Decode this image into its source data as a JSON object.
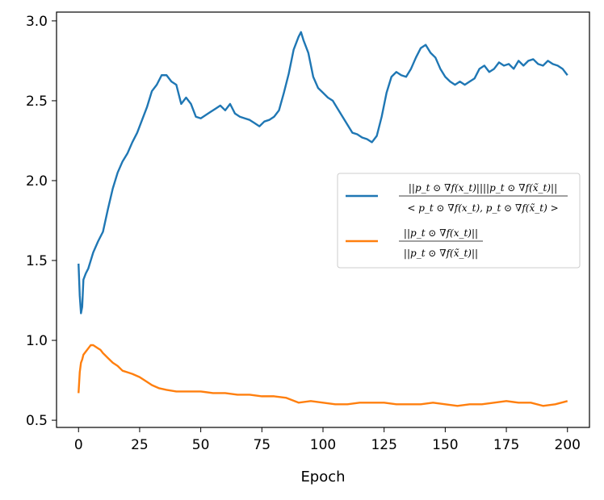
{
  "chart_data": {
    "type": "line",
    "xlabel": "Epoch",
    "ylabel": "",
    "xlim": [
      -9,
      209
    ],
    "ylim": [
      0.455,
      3.055
    ],
    "xticks": [
      0,
      25,
      50,
      75,
      100,
      125,
      150,
      175,
      200
    ],
    "yticks": [
      0.5,
      1.0,
      1.5,
      2.0,
      2.5,
      3.0
    ],
    "ytick_labels": [
      "0.5",
      "1.0",
      "1.5",
      "2.0",
      "2.5",
      "3.0"
    ],
    "legend": {
      "placement": "center-right",
      "entries": [
        {
          "numerator": "||p_t ⊙ ∇f(x_t)||||p_t ⊙ ∇f(x̃_t)||",
          "denominator": "< p_t ⊙ ∇f(x_t), p_t ⊙ ∇f(x̃_t) >"
        },
        {
          "numerator": "||p_t ⊙ ∇f(x_t)||",
          "denominator": "||p_t ⊙ ∇f(x̃_t)||"
        }
      ]
    },
    "series": [
      {
        "color": "#1f77b4",
        "x": [
          0,
          0.5,
          1,
          1.5,
          2,
          3,
          4,
          5,
          6,
          8,
          10,
          12,
          14,
          16,
          18,
          20,
          22,
          24,
          26,
          28,
          30,
          32,
          34,
          36,
          38,
          40,
          42,
          44,
          46,
          48,
          50,
          52,
          54,
          56,
          58,
          60,
          62,
          64,
          66,
          68,
          70,
          72,
          74,
          76,
          78,
          80,
          82,
          84,
          86,
          88,
          90,
          91,
          92,
          94,
          96,
          98,
          100,
          102,
          104,
          106,
          108,
          110,
          112,
          114,
          116,
          118,
          120,
          122,
          124,
          126,
          128,
          130,
          132,
          134,
          136,
          138,
          140,
          142,
          144,
          146,
          148,
          150,
          152,
          154,
          156,
          158,
          160,
          162,
          164,
          166,
          168,
          170,
          172,
          174,
          176,
          178,
          180,
          182,
          184,
          186,
          188,
          190,
          192,
          194,
          196,
          198,
          200
        ],
        "y": [
          1.48,
          1.28,
          1.17,
          1.21,
          1.38,
          1.42,
          1.45,
          1.5,
          1.55,
          1.62,
          1.68,
          1.82,
          1.95,
          2.05,
          2.12,
          2.17,
          2.24,
          2.3,
          2.38,
          2.46,
          2.56,
          2.6,
          2.66,
          2.66,
          2.62,
          2.6,
          2.48,
          2.52,
          2.48,
          2.4,
          2.39,
          2.41,
          2.43,
          2.45,
          2.47,
          2.44,
          2.48,
          2.42,
          2.4,
          2.39,
          2.38,
          2.36,
          2.34,
          2.37,
          2.38,
          2.4,
          2.44,
          2.55,
          2.67,
          2.82,
          2.9,
          2.93,
          2.88,
          2.8,
          2.65,
          2.58,
          2.55,
          2.52,
          2.5,
          2.45,
          2.4,
          2.35,
          2.3,
          2.29,
          2.27,
          2.26,
          2.24,
          2.28,
          2.4,
          2.55,
          2.65,
          2.68,
          2.66,
          2.65,
          2.7,
          2.77,
          2.83,
          2.85,
          2.8,
          2.77,
          2.7,
          2.65,
          2.62,
          2.6,
          2.62,
          2.6,
          2.62,
          2.64,
          2.7,
          2.72,
          2.68,
          2.7,
          2.74,
          2.72,
          2.73,
          2.7,
          2.75,
          2.72,
          2.75,
          2.76,
          2.73,
          2.72,
          2.75,
          2.73,
          2.72,
          2.7,
          2.66
        ]
      },
      {
        "color": "#ff7f0e",
        "x": [
          0,
          0.5,
          1,
          1.5,
          2,
          3,
          4,
          5,
          6,
          7,
          8,
          9,
          10,
          12,
          14,
          16,
          18,
          20,
          22,
          25,
          28,
          30,
          33,
          36,
          40,
          45,
          50,
          55,
          60,
          65,
          70,
          75,
          80,
          85,
          90,
          95,
          100,
          105,
          110,
          115,
          120,
          125,
          130,
          135,
          140,
          145,
          150,
          155,
          160,
          165,
          170,
          175,
          180,
          185,
          190,
          195,
          200
        ],
        "y": [
          0.67,
          0.8,
          0.86,
          0.88,
          0.91,
          0.93,
          0.95,
          0.97,
          0.97,
          0.96,
          0.95,
          0.94,
          0.92,
          0.89,
          0.86,
          0.84,
          0.81,
          0.8,
          0.79,
          0.77,
          0.74,
          0.72,
          0.7,
          0.69,
          0.68,
          0.68,
          0.68,
          0.67,
          0.67,
          0.66,
          0.66,
          0.65,
          0.65,
          0.64,
          0.61,
          0.62,
          0.61,
          0.6,
          0.6,
          0.61,
          0.61,
          0.61,
          0.6,
          0.6,
          0.6,
          0.61,
          0.6,
          0.59,
          0.6,
          0.6,
          0.61,
          0.62,
          0.61,
          0.61,
          0.59,
          0.6,
          0.62
        ]
      }
    ]
  }
}
